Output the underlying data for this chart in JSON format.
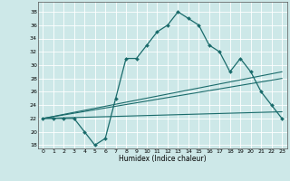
{
  "title": "",
  "xlabel": "Humidex (Indice chaleur)",
  "background_color": "#cde8e8",
  "grid_color": "#ffffff",
  "line_color": "#1a6b6b",
  "xlim": [
    -0.5,
    23.5
  ],
  "ylim": [
    17.5,
    39.5
  ],
  "xticks": [
    0,
    1,
    2,
    3,
    4,
    5,
    6,
    7,
    8,
    9,
    10,
    11,
    12,
    13,
    14,
    15,
    16,
    17,
    18,
    19,
    20,
    21,
    22,
    23
  ],
  "yticks": [
    18,
    20,
    22,
    24,
    26,
    28,
    30,
    32,
    34,
    36,
    38
  ],
  "main_curve": [
    22,
    22,
    22,
    22,
    20,
    18,
    19,
    25,
    31,
    31,
    33,
    35,
    36,
    38,
    37,
    36,
    33,
    32,
    29,
    31,
    29,
    26,
    24,
    22
  ],
  "line1_x": [
    0,
    23
  ],
  "line1_y": [
    22,
    29
  ],
  "line2_x": [
    0,
    23
  ],
  "line2_y": [
    22,
    23
  ],
  "line3_x": [
    0,
    23
  ],
  "line3_y": [
    22,
    28
  ]
}
